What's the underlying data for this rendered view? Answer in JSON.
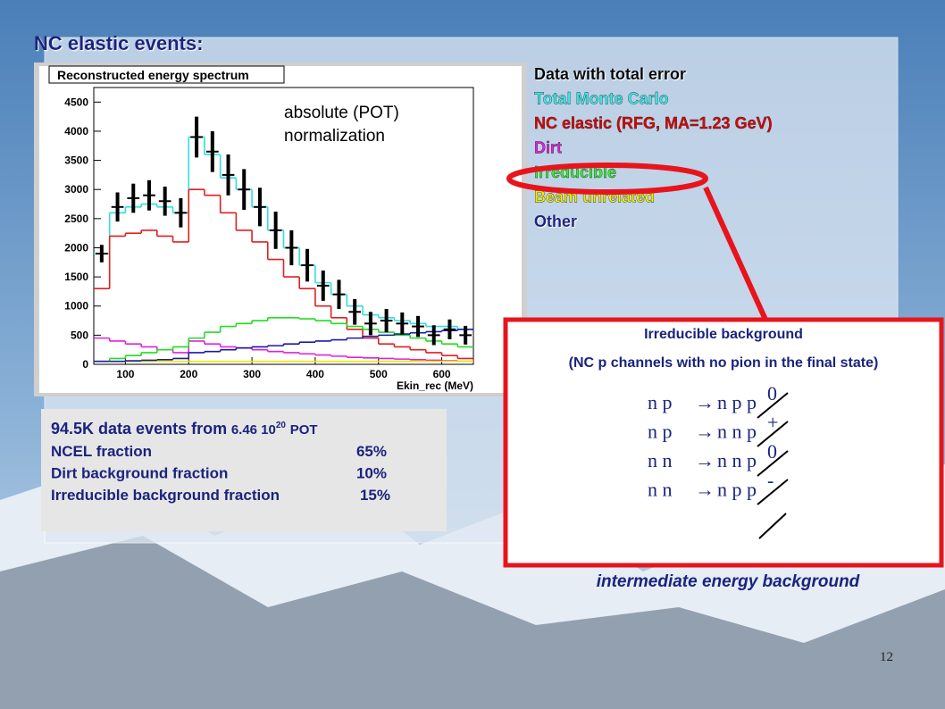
{
  "slide_title": "NC elastic events:",
  "chart_data": {
    "type": "histogram",
    "title": "Reconstructed energy spectrum",
    "x_label": "Ekin_rec (MeV)",
    "annotation": [
      "absolute (POT)",
      "normalization"
    ],
    "bins": [
      50,
      75,
      100,
      125,
      150,
      175,
      200,
      225,
      250,
      275,
      300,
      325,
      350,
      375,
      400,
      425,
      450,
      475,
      500,
      525,
      550,
      575,
      600,
      625,
      650
    ],
    "xlim": [
      50,
      650
    ],
    "xticks": [
      100,
      200,
      300,
      400,
      500,
      600
    ],
    "ylim": [
      0,
      4750
    ],
    "yticks": [
      0,
      500,
      1000,
      1500,
      2000,
      2500,
      3000,
      3500,
      4000,
      4500
    ],
    "series": [
      {
        "name": "Data with total error",
        "color": "#000000",
        "text_color": "#000000",
        "style": "points",
        "values": [
          1900,
          2700,
          2850,
          2900,
          2800,
          2600,
          3900,
          3650,
          3250,
          3000,
          2700,
          2300,
          2000,
          1700,
          1350,
          1200,
          900,
          700,
          750,
          700,
          650,
          500,
          600,
          500
        ],
        "errors": [
          150,
          250,
          250,
          260,
          250,
          250,
          350,
          350,
          350,
          350,
          330,
          320,
          300,
          280,
          260,
          250,
          220,
          200,
          200,
          190,
          180,
          170,
          170,
          160
        ]
      },
      {
        "name": "Total Monte Carlo",
        "color": "#33dddd",
        "text_color": "#33eeee",
        "values": [
          1900,
          2600,
          2700,
          2750,
          2700,
          2600,
          3900,
          3600,
          3200,
          3000,
          2700,
          2300,
          2000,
          1700,
          1400,
          1200,
          1000,
          850,
          800,
          750,
          700,
          650,
          650,
          600
        ]
      },
      {
        "name": "NC elastic (RFG, MA=1.23 GeV)",
        "color": "#e02020",
        "text_color": "#e00000",
        "values": [
          1300,
          2200,
          2250,
          2300,
          2200,
          2100,
          3000,
          2900,
          2600,
          2300,
          2100,
          1800,
          1500,
          1300,
          1000,
          800,
          600,
          450,
          350,
          300,
          250,
          200,
          150,
          100
        ]
      },
      {
        "name": "Dirt",
        "color": "#e020e0",
        "text_color": "#dd22dd",
        "values": [
          450,
          400,
          350,
          300,
          250,
          200,
          400,
          350,
          300,
          280,
          250,
          220,
          200,
          180,
          160,
          140,
          120,
          110,
          100,
          90,
          80,
          70,
          60,
          50
        ]
      },
      {
        "name": "Irreducible",
        "color": "#22dd22",
        "text_color": "#33ee33",
        "values": [
          50,
          100,
          150,
          200,
          250,
          300,
          450,
          550,
          650,
          700,
          750,
          800,
          800,
          780,
          750,
          700,
          650,
          600,
          550,
          500,
          450,
          400,
          350,
          300
        ]
      },
      {
        "name": "Beam unrelated",
        "color": "#e8e800",
        "text_color": "#eeee00",
        "values": [
          50,
          50,
          50,
          50,
          50,
          50,
          50,
          50,
          50,
          50,
          50,
          50,
          50,
          50,
          50,
          50,
          50,
          50,
          50,
          50,
          50,
          50,
          50,
          50
        ]
      },
      {
        "name": "Other",
        "color": "#1a1aa8",
        "text_color": "#1a237e",
        "values": [
          50,
          50,
          60,
          70,
          80,
          100,
          200,
          220,
          250,
          280,
          300,
          320,
          350,
          380,
          400,
          420,
          450,
          480,
          500,
          520,
          540,
          560,
          580,
          600
        ]
      }
    ]
  },
  "info": {
    "headline": [
      "94.5K data events from",
      "6.46 10",
      "20",
      "POT"
    ],
    "rows": [
      [
        "NCEL fraction",
        "65%"
      ],
      [
        "Dirt background fraction",
        "10%"
      ],
      [
        "Irreducible background fraction",
        "15%"
      ]
    ]
  },
  "callout": {
    "title": "Irreducible background",
    "subtitle": "(NC p channels with no pion in the final state)",
    "reactions": [
      [
        "n p",
        "→",
        "n p p",
        "0"
      ],
      [
        "n p",
        "→",
        "n n p",
        "+"
      ],
      [
        "n n",
        "→",
        "n n p",
        "0"
      ],
      [
        "n n",
        "→",
        "n p p",
        "-"
      ]
    ]
  },
  "caption": "intermediate energy background",
  "page_number": "12"
}
